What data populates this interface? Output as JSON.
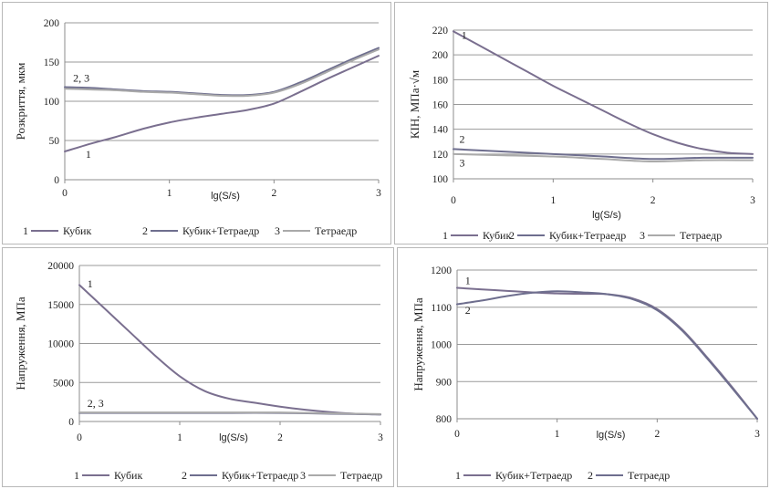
{
  "chart_data": [
    {
      "type": "line",
      "ylabel": "Розкриття, мкм",
      "xlabel": "lg(S/s)",
      "xlim": [
        0,
        3
      ],
      "xticks": [
        0,
        1,
        2,
        3
      ],
      "ylim": [
        0,
        200
      ],
      "yticks": [
        0,
        50,
        100,
        150,
        200
      ],
      "grid": true,
      "legend_position": "bottom",
      "series": [
        {
          "label": "1",
          "name": "Кубик",
          "color": "#7a6f8f",
          "x": [
            0,
            0.25,
            0.5,
            0.75,
            1,
            1.25,
            1.5,
            1.75,
            2,
            2.25,
            2.5,
            2.75,
            3
          ],
          "y": [
            36,
            46,
            55,
            65,
            73,
            79,
            84,
            89,
            97,
            112,
            128,
            143,
            158
          ]
        },
        {
          "label": "2",
          "name": "Кубик+Тетраедр",
          "color": "#6e6e8e",
          "x": [
            0,
            0.25,
            0.5,
            0.75,
            1,
            1.25,
            1.5,
            1.75,
            2,
            2.25,
            2.5,
            2.75,
            3
          ],
          "y": [
            118,
            117,
            115,
            113,
            112,
            110,
            108,
            108,
            112,
            124,
            139,
            154,
            168
          ]
        },
        {
          "label": "3",
          "name": "Тетраедр",
          "color": "#aaaaaa",
          "x": [
            0,
            0.25,
            0.5,
            0.75,
            1,
            1.25,
            1.5,
            1.75,
            2,
            2.25,
            2.5,
            2.75,
            3
          ],
          "y": [
            116,
            115,
            114,
            112,
            111,
            109,
            107,
            107,
            111,
            122,
            137,
            152,
            166
          ]
        }
      ],
      "annotations": [
        {
          "text": "2, 3",
          "x": 0.08,
          "y": 125
        },
        {
          "text": "1",
          "x": 0.2,
          "y": 28
        }
      ]
    },
    {
      "type": "line",
      "ylabel": "КІН, МПа·√м",
      "xlabel": "lg(S/s)",
      "xlim": [
        0,
        3
      ],
      "xticks": [
        0,
        1,
        2,
        3
      ],
      "ylim": [
        100,
        220
      ],
      "yticks": [
        100,
        120,
        140,
        160,
        180,
        200,
        220
      ],
      "grid": true,
      "legend_position": "bottom",
      "series": [
        {
          "label": "1",
          "name": "Кубик",
          "color": "#7a6f8f",
          "x": [
            0,
            0.25,
            0.5,
            0.75,
            1,
            1.25,
            1.5,
            1.75,
            2,
            2.25,
            2.5,
            2.75,
            3
          ],
          "y": [
            219,
            208,
            197,
            186,
            175,
            165,
            155,
            145,
            136,
            129,
            124,
            121,
            120
          ]
        },
        {
          "label": "2",
          "name": "Кубик+Тетраедр",
          "color": "#6e6e8e",
          "x": [
            0,
            0.5,
            1,
            1.5,
            2,
            2.5,
            3
          ],
          "y": [
            124,
            122,
            120,
            118,
            116,
            117,
            117
          ]
        },
        {
          "label": "3",
          "name": "Тетраедр",
          "color": "#aaaaaa",
          "x": [
            0,
            0.5,
            1,
            1.5,
            2,
            2.5,
            3
          ],
          "y": [
            120,
            119,
            118,
            116,
            114,
            115,
            115
          ]
        }
      ],
      "annotations": [
        {
          "text": "1",
          "x": 0.08,
          "y": 213
        },
        {
          "text": "2",
          "x": 0.06,
          "y": 129
        },
        {
          "text": "3",
          "x": 0.06,
          "y": 110
        }
      ]
    },
    {
      "type": "line",
      "ylabel": "Напруження, МПа",
      "xlabel": "lg(S/s)",
      "xlim": [
        0,
        3
      ],
      "xticks": [
        0,
        1,
        2,
        3
      ],
      "ylim": [
        0,
        20000
      ],
      "yticks": [
        0,
        5000,
        10000,
        15000,
        20000
      ],
      "grid": true,
      "legend_position": "bottom",
      "series": [
        {
          "label": "1",
          "name": "Кубик",
          "color": "#7a6f8f",
          "x": [
            0,
            0.25,
            0.5,
            0.75,
            1,
            1.25,
            1.5,
            1.75,
            2,
            2.25,
            2.5,
            2.75,
            3
          ],
          "y": [
            17500,
            14500,
            11500,
            8500,
            5800,
            3900,
            2900,
            2400,
            1900,
            1500,
            1200,
            1000,
            900
          ]
        },
        {
          "label": "2",
          "name": "Кубик+Тетраедр",
          "color": "#6e6e8e",
          "x": [
            0,
            0.5,
            1,
            1.5,
            2,
            2.5,
            3
          ],
          "y": [
            1100,
            1100,
            1100,
            1100,
            1100,
            1000,
            900
          ]
        },
        {
          "label": "3",
          "name": "Тетраедр",
          "color": "#aaaaaa",
          "x": [
            0,
            0.5,
            1,
            1.5,
            2,
            2.5,
            3
          ],
          "y": [
            1150,
            1150,
            1150,
            1150,
            1150,
            1050,
            950
          ]
        }
      ],
      "annotations": [
        {
          "text": "1",
          "x": 0.08,
          "y": 17200
        },
        {
          "text": "2, 3",
          "x": 0.08,
          "y": 1900
        }
      ]
    },
    {
      "type": "line",
      "ylabel": "Напруження, МПа",
      "xlabel": "lg(S/s)",
      "xlim": [
        0,
        3
      ],
      "xticks": [
        0,
        1,
        2,
        3
      ],
      "ylim": [
        800,
        1200
      ],
      "yticks": [
        800,
        900,
        1000,
        1100,
        1200
      ],
      "grid": true,
      "legend_position": "bottom",
      "series": [
        {
          "label": "1",
          "name": "Кубик+Тетраедр",
          "color": "#7a6f8f",
          "x": [
            0,
            0.25,
            0.5,
            0.75,
            1,
            1.25,
            1.5,
            1.75,
            2,
            2.25,
            2.5,
            2.75,
            3
          ],
          "y": [
            1152,
            1148,
            1144,
            1140,
            1137,
            1136,
            1135,
            1124,
            1095,
            1040,
            965,
            885,
            800
          ]
        },
        {
          "label": "2",
          "name": "Тетраедр",
          "color": "#6e6e8e",
          "x": [
            0,
            0.25,
            0.5,
            0.75,
            1,
            1.25,
            1.5,
            1.75,
            2,
            2.25,
            2.5,
            2.75,
            3
          ],
          "y": [
            1108,
            1118,
            1130,
            1139,
            1143,
            1140,
            1135,
            1122,
            1092,
            1037,
            962,
            882,
            800
          ]
        }
      ],
      "annotations": [
        {
          "text": "1",
          "x": 0.08,
          "y": 1162
        },
        {
          "text": "2",
          "x": 0.08,
          "y": 1082
        }
      ]
    }
  ]
}
